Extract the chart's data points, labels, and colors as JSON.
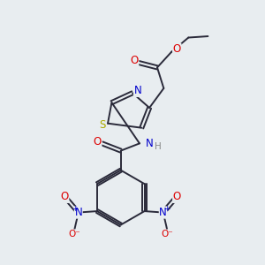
{
  "bg_color": "#e8edf0",
  "bond_color": "#2a2a3a",
  "atom_colors": {
    "O": "#dd0000",
    "N": "#0000cc",
    "S": "#aaaa00",
    "H": "#888888"
  },
  "line_width": 1.4,
  "font_size": 8.5,
  "fig_width": 3.0,
  "fig_height": 3.0,
  "dpi": 100
}
